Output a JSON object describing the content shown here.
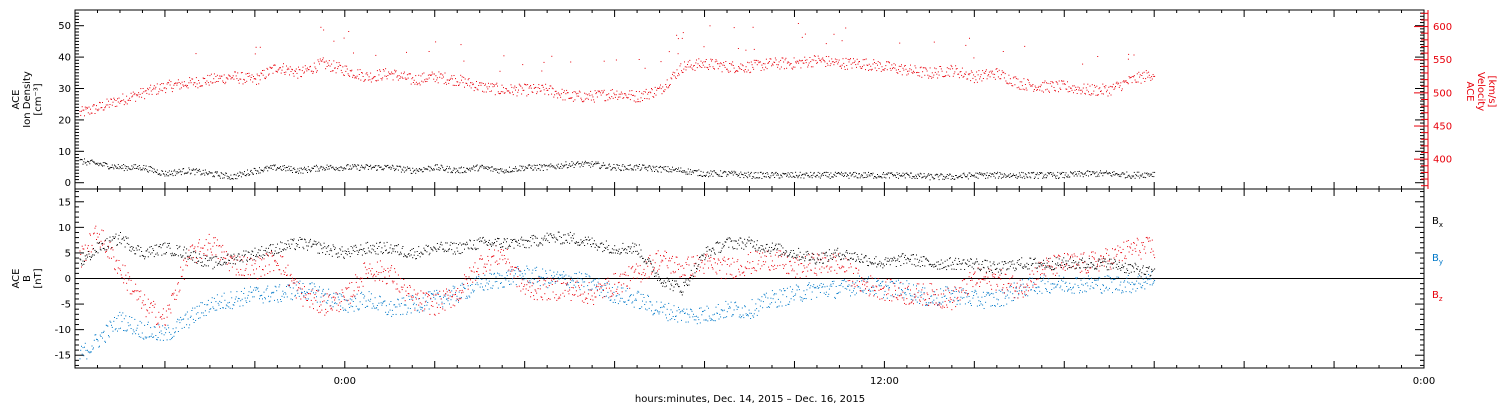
{
  "xlabel": "hours:minutes, Dec. 14, 2015 – Dec. 16, 2015",
  "x_ticks": [
    "0:00",
    "12:00",
    "0:00"
  ],
  "chart_data": [
    {
      "type": "scatter",
      "title": "",
      "panel": "plasma",
      "xlabel": "hours:minutes, Dec. 14, 2015 – Dec. 16, 2015",
      "x_range_hours": [
        -6,
        24
      ],
      "x_ticks": [
        {
          "t": 0,
          "label": "0:00"
        },
        {
          "t": 12,
          "label": "12:00"
        },
        {
          "t": 24,
          "label": "0:00"
        }
      ],
      "left_axis": {
        "label_lines": [
          "ACE",
          "Ion Density",
          "[cm⁻³]"
        ],
        "ylim": [
          -2,
          55
        ],
        "ticks": [
          0,
          10,
          20,
          30,
          40,
          50
        ],
        "tick_labels": [
          "0",
          "10",
          "20",
          "30",
          "40",
          "50"
        ]
      },
      "right_axis": {
        "label_lines": [
          "ACE",
          "Velocity",
          "[km/s]"
        ],
        "ylim": [
          355,
          625
        ],
        "ticks": [
          400,
          450,
          500,
          550,
          600
        ],
        "tick_labels": [
          "400",
          "450",
          "500",
          "550",
          "600"
        ],
        "color": "#e8000b"
      },
      "series": [
        {
          "axis": "left",
          "color": "#000000",
          "points": [
            [
              -5.9,
              7
            ],
            [
              -5.0,
              5
            ],
            [
              -4.5,
              5
            ],
            [
              -4.0,
              3
            ],
            [
              -3.5,
              4
            ],
            [
              -3.0,
              3
            ],
            [
              -2.5,
              2
            ],
            [
              -2.0,
              4
            ],
            [
              -1.5,
              5
            ],
            [
              -1.0,
              4
            ],
            [
              -0.5,
              5
            ],
            [
              0.0,
              5
            ],
            [
              0.5,
              5
            ],
            [
              1.0,
              5
            ],
            [
              1.5,
              4
            ],
            [
              2.0,
              5
            ],
            [
              2.5,
              4
            ],
            [
              3.0,
              5
            ],
            [
              3.5,
              4
            ],
            [
              4.0,
              5
            ],
            [
              4.5,
              5
            ],
            [
              5.0,
              6
            ],
            [
              5.5,
              6
            ],
            [
              6.0,
              5
            ],
            [
              6.5,
              5
            ],
            [
              7.0,
              4.5
            ],
            [
              7.5,
              4
            ],
            [
              8.0,
              3
            ],
            [
              8.5,
              3
            ],
            [
              9.0,
              2.5
            ],
            [
              9.5,
              2.5
            ],
            [
              10.0,
              2.5
            ],
            [
              10.5,
              2.5
            ],
            [
              11.0,
              2.5
            ],
            [
              11.5,
              2.5
            ],
            [
              12.0,
              2.5
            ],
            [
              12.5,
              2.5
            ],
            [
              13.0,
              2
            ],
            [
              13.5,
              2
            ],
            [
              14.0,
              2.5
            ],
            [
              14.5,
              2.5
            ],
            [
              15.0,
              2.5
            ],
            [
              15.5,
              2.5
            ],
            [
              16.0,
              2.5
            ],
            [
              16.5,
              3
            ],
            [
              17.0,
              3
            ],
            [
              17.5,
              2.5
            ],
            [
              18.0,
              3
            ]
          ]
        },
        {
          "axis": "right",
          "color": "#e8000b",
          "points": [
            [
              -5.9,
              470
            ],
            [
              -5.5,
              478
            ],
            [
              -5.0,
              490
            ],
            [
              -4.5,
              500
            ],
            [
              -4.0,
              510
            ],
            [
              -3.5,
              515
            ],
            [
              -3.0,
              520
            ],
            [
              -2.5,
              525
            ],
            [
              -2.0,
              520
            ],
            [
              -1.5,
              540
            ],
            [
              -1.0,
              530
            ],
            [
              -0.5,
              545
            ],
            [
              0.0,
              535
            ],
            [
              0.5,
              525
            ],
            [
              1.0,
              530
            ],
            [
              1.5,
              520
            ],
            [
              2.0,
              525
            ],
            [
              2.5,
              520
            ],
            [
              3.0,
              510
            ],
            [
              3.5,
              505
            ],
            [
              4.0,
              505
            ],
            [
              4.5,
              505
            ],
            [
              5.0,
              495
            ],
            [
              5.5,
              495
            ],
            [
              6.0,
              500
            ],
            [
              6.5,
              495
            ],
            [
              7.0,
              505
            ],
            [
              7.5,
              540
            ],
            [
              8.0,
              545
            ],
            [
              8.5,
              540
            ],
            [
              9.0,
              540
            ],
            [
              9.5,
              545
            ],
            [
              10.0,
              545
            ],
            [
              10.5,
              550
            ],
            [
              11.0,
              545
            ],
            [
              11.5,
              545
            ],
            [
              12.0,
              540
            ],
            [
              12.5,
              535
            ],
            [
              13.0,
              530
            ],
            [
              13.5,
              535
            ],
            [
              14.0,
              525
            ],
            [
              14.5,
              530
            ],
            [
              15.0,
              515
            ],
            [
              15.5,
              510
            ],
            [
              16.0,
              510
            ],
            [
              16.5,
              505
            ],
            [
              17.0,
              505
            ],
            [
              17.5,
              520
            ],
            [
              18.0,
              530
            ]
          ]
        }
      ]
    },
    {
      "type": "scatter",
      "title": "",
      "panel": "magnetic-field",
      "xlabel": "hours:minutes, Dec. 14, 2015 – Dec. 16, 2015",
      "x_range_hours": [
        -6,
        24
      ],
      "x_ticks": [
        {
          "t": 0,
          "label": "0:00"
        },
        {
          "t": 12,
          "label": "12:00"
        },
        {
          "t": 24,
          "label": "0:00"
        }
      ],
      "left_axis": {
        "label_lines": [
          "ACE",
          "B",
          "[nT]"
        ],
        "ylim": [
          -17.5,
          17.5
        ],
        "ticks": [
          -15,
          -10,
          -5,
          0,
          5,
          10,
          15
        ],
        "tick_labels": [
          "-15",
          "-10",
          "-5",
          "0",
          "5",
          "10",
          "15"
        ]
      },
      "zero_line": true,
      "series": [
        {
          "name": "Bx",
          "color": "#000000",
          "points": [
            [
              -5.9,
              3
            ],
            [
              -5.5,
              6
            ],
            [
              -5.0,
              8
            ],
            [
              -4.5,
              5
            ],
            [
              -4.0,
              6
            ],
            [
              -3.5,
              5
            ],
            [
              -3.0,
              3
            ],
            [
              -2.5,
              4
            ],
            [
              -2.0,
              5
            ],
            [
              -1.5,
              6
            ],
            [
              -1.0,
              7
            ],
            [
              -0.5,
              6
            ],
            [
              0.0,
              5
            ],
            [
              0.5,
              6
            ],
            [
              1.0,
              6
            ],
            [
              1.5,
              5
            ],
            [
              2.0,
              6
            ],
            [
              2.5,
              6
            ],
            [
              3.0,
              7
            ],
            [
              3.5,
              7
            ],
            [
              4.0,
              7
            ],
            [
              4.5,
              8
            ],
            [
              5.0,
              8
            ],
            [
              5.5,
              7
            ],
            [
              6.0,
              6
            ],
            [
              6.5,
              6
            ],
            [
              7.0,
              0
            ],
            [
              7.5,
              -2
            ],
            [
              8.0,
              5
            ],
            [
              8.5,
              7
            ],
            [
              9.0,
              7
            ],
            [
              9.5,
              6
            ],
            [
              10.0,
              5
            ],
            [
              10.5,
              4
            ],
            [
              11.0,
              5
            ],
            [
              11.5,
              4
            ],
            [
              12.0,
              3
            ],
            [
              12.5,
              4
            ],
            [
              13.0,
              3
            ],
            [
              13.5,
              3
            ],
            [
              14.0,
              3
            ],
            [
              14.5,
              2
            ],
            [
              15.0,
              3
            ],
            [
              15.5,
              3
            ],
            [
              16.0,
              3
            ],
            [
              16.5,
              3
            ],
            [
              17.0,
              3
            ],
            [
              17.5,
              2
            ],
            [
              18.0,
              1
            ]
          ]
        },
        {
          "name": "By",
          "color": "#0078c8",
          "points": [
            [
              -5.9,
              -15
            ],
            [
              -5.5,
              -12
            ],
            [
              -5.0,
              -8
            ],
            [
              -4.5,
              -10
            ],
            [
              -4.0,
              -11
            ],
            [
              -3.5,
              -8
            ],
            [
              -3.0,
              -5
            ],
            [
              -2.5,
              -4
            ],
            [
              -2.0,
              -3
            ],
            [
              -1.5,
              -3
            ],
            [
              -1.0,
              -2
            ],
            [
              -0.5,
              -3
            ],
            [
              0.0,
              -5
            ],
            [
              0.5,
              -4
            ],
            [
              1.0,
              -6
            ],
            [
              1.5,
              -5
            ],
            [
              2.0,
              -4
            ],
            [
              2.5,
              -3
            ],
            [
              3.0,
              -1
            ],
            [
              3.5,
              0
            ],
            [
              4.0,
              1
            ],
            [
              4.5,
              0
            ],
            [
              5.0,
              0
            ],
            [
              5.5,
              -1
            ],
            [
              6.0,
              -3
            ],
            [
              6.5,
              -4
            ],
            [
              7.0,
              -6
            ],
            [
              7.5,
              -7
            ],
            [
              8.0,
              -7
            ],
            [
              8.5,
              -6
            ],
            [
              9.0,
              -6
            ],
            [
              9.5,
              -4
            ],
            [
              10.0,
              -3
            ],
            [
              10.5,
              -2
            ],
            [
              11.0,
              -2
            ],
            [
              11.5,
              -1
            ],
            [
              12.0,
              -2
            ],
            [
              12.5,
              -2
            ],
            [
              13.0,
              -4
            ],
            [
              13.5,
              -3
            ],
            [
              14.0,
              -4
            ],
            [
              14.5,
              -4
            ],
            [
              15.0,
              -2
            ],
            [
              15.5,
              -1
            ],
            [
              16.0,
              -1
            ],
            [
              16.5,
              -1
            ],
            [
              17.0,
              -1
            ],
            [
              17.5,
              -1
            ],
            [
              18.0,
              0
            ]
          ]
        },
        {
          "name": "Bz",
          "color": "#e8000b",
          "points": [
            [
              -5.9,
              4
            ],
            [
              -5.5,
              9
            ],
            [
              -5.0,
              2
            ],
            [
              -4.5,
              -5
            ],
            [
              -4.0,
              -8
            ],
            [
              -3.5,
              4
            ],
            [
              -3.0,
              7
            ],
            [
              -2.5,
              3
            ],
            [
              -2.0,
              2
            ],
            [
              -1.5,
              4
            ],
            [
              -1.0,
              -3
            ],
            [
              -0.5,
              -5
            ],
            [
              0.0,
              -4
            ],
            [
              0.5,
              2
            ],
            [
              1.0,
              1
            ],
            [
              1.5,
              -4
            ],
            [
              2.0,
              -5
            ],
            [
              2.5,
              -3
            ],
            [
              3.0,
              3
            ],
            [
              3.5,
              5
            ],
            [
              4.0,
              -2
            ],
            [
              4.5,
              -2
            ],
            [
              5.0,
              -2
            ],
            [
              5.5,
              -3
            ],
            [
              6.0,
              -1
            ],
            [
              6.5,
              1
            ],
            [
              7.0,
              4
            ],
            [
              7.5,
              2
            ],
            [
              8.0,
              3
            ],
            [
              8.5,
              2
            ],
            [
              9.0,
              3
            ],
            [
              9.5,
              4
            ],
            [
              10.0,
              2
            ],
            [
              10.5,
              3
            ],
            [
              11.0,
              3
            ],
            [
              11.5,
              -1
            ],
            [
              12.0,
              -2
            ],
            [
              12.5,
              -3
            ],
            [
              13.0,
              -3
            ],
            [
              13.5,
              -4
            ],
            [
              14.0,
              0
            ],
            [
              14.5,
              0
            ],
            [
              15.0,
              -2
            ],
            [
              15.5,
              2
            ],
            [
              16.0,
              3
            ],
            [
              16.5,
              3
            ],
            [
              17.0,
              4
            ],
            [
              17.5,
              6
            ],
            [
              18.0,
              6
            ]
          ]
        }
      ],
      "legend": {
        "placement": "right",
        "labels": [
          "Bx",
          "By",
          "Bz"
        ]
      }
    }
  ]
}
